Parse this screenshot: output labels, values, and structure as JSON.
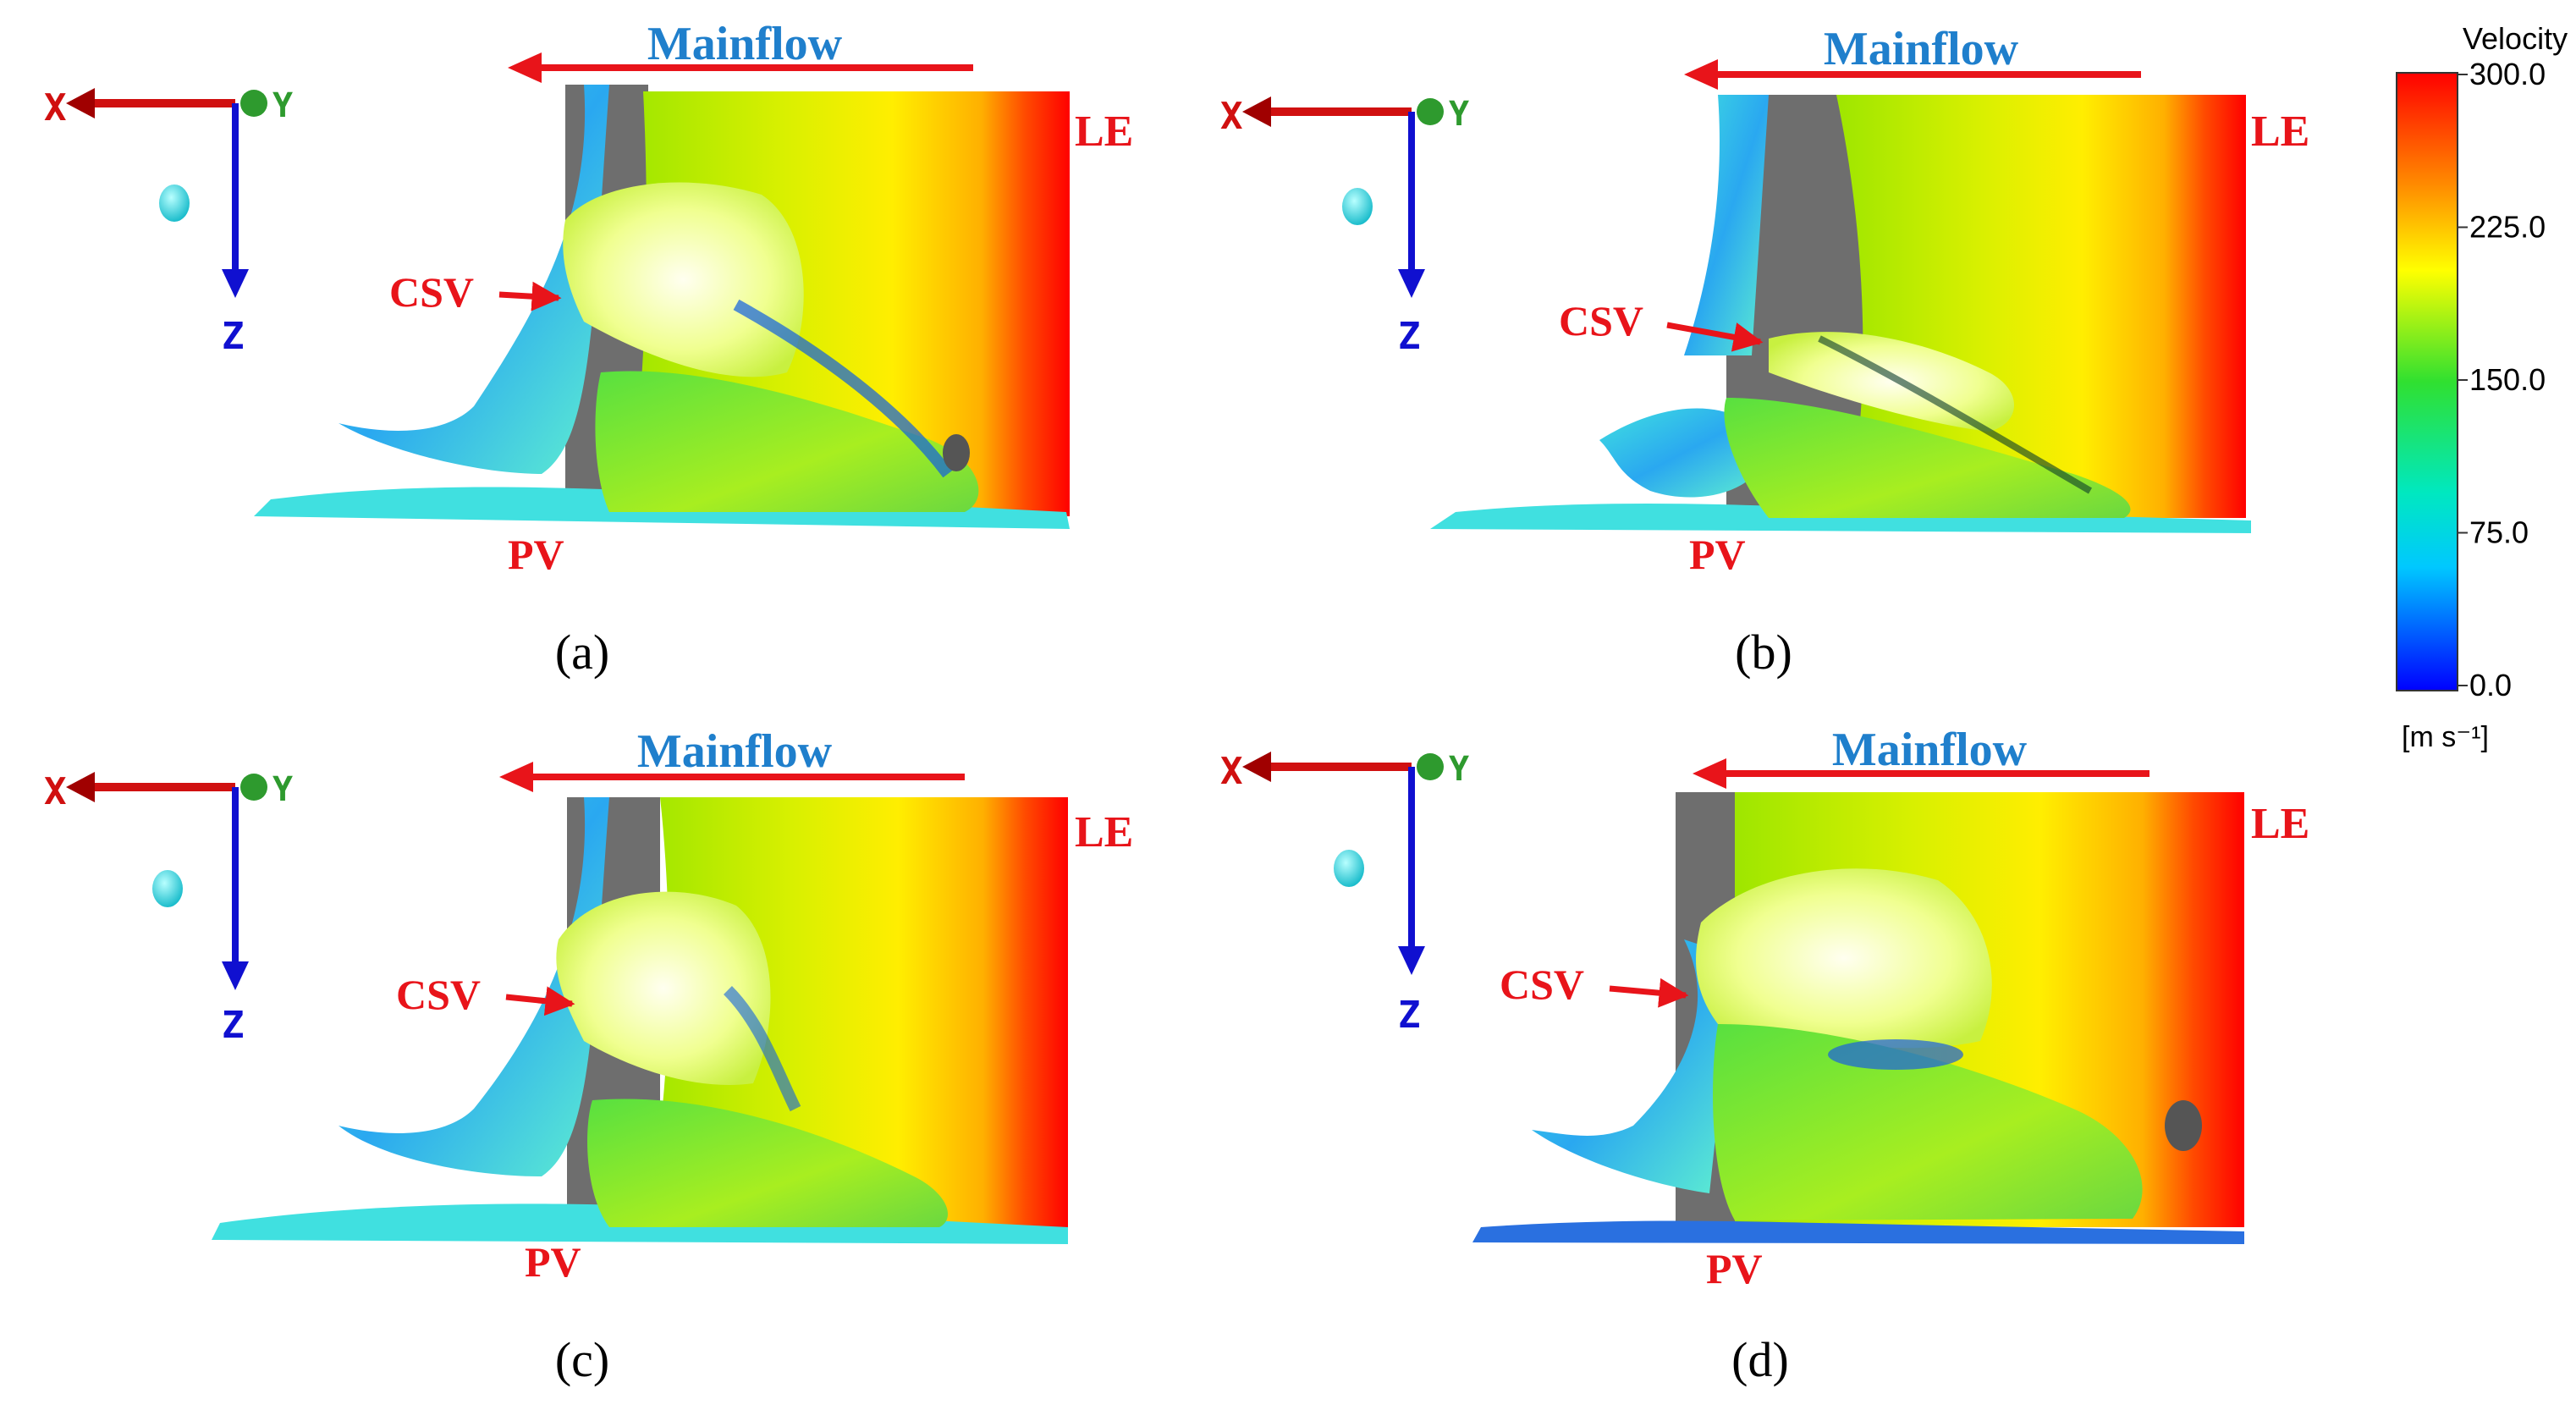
{
  "panels": [
    {
      "id": "a",
      "caption": "(a)",
      "mainflow": "Mainflow",
      "le": "LE",
      "pv": "PV",
      "csv": "CSV",
      "axes": {
        "x": "X",
        "y": "Y",
        "z": "Z"
      }
    },
    {
      "id": "b",
      "caption": "(b)",
      "mainflow": "Mainflow",
      "le": "LE",
      "pv": "PV",
      "csv": "CSV",
      "axes": {
        "x": "X",
        "y": "Y",
        "z": "Z"
      }
    },
    {
      "id": "c",
      "caption": "(c)",
      "mainflow": "Mainflow",
      "le": "LE",
      "pv": "PV",
      "csv": "CSV",
      "axes": {
        "x": "X",
        "y": "Y",
        "z": "Z"
      }
    },
    {
      "id": "d",
      "caption": "(d)",
      "mainflow": "Mainflow",
      "le": "LE",
      "pv": "PV",
      "csv": "CSV",
      "axes": {
        "x": "X",
        "y": "Y",
        "z": "Z"
      }
    }
  ],
  "colorbar": {
    "title": "Velocity",
    "unit": "[m s⁻¹]",
    "ticks": [
      "300.0",
      "225.0",
      "150.0",
      "75.0",
      "0.0"
    ],
    "colors": [
      "#ff0000",
      "#ff8a00",
      "#ffff00",
      "#00e040",
      "#00e5ff",
      "#0000ff"
    ]
  },
  "colors": {
    "label_red": "#e8141a",
    "mainflow_blue": "#1f7fcc",
    "axis_x": "#d01010",
    "axis_y": "#2e9a2e",
    "axis_z": "#1010d0",
    "marker": "#22c8d8",
    "blade_grey": "#6e6e6e"
  }
}
